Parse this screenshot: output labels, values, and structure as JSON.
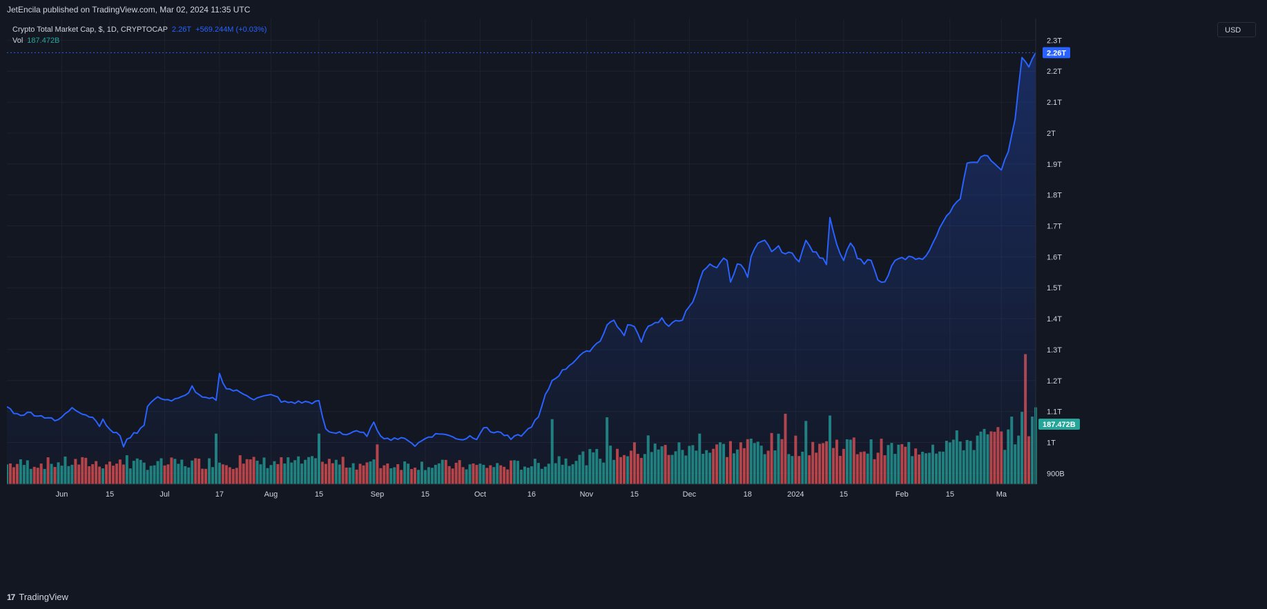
{
  "header": {
    "published_text": "JetEncila published on TradingView.com, Mar 02, 2024 11:35 UTC"
  },
  "legend": {
    "symbol": "Crypto Total Market Cap, $, 1D, CRYPTOCAP",
    "last_price": "2.26T",
    "change": "+569.244M (+0.03%)",
    "vol_label": "Vol",
    "vol_value": "187.472B"
  },
  "currency_button": "USD",
  "footer": {
    "brand": "TradingView",
    "logo_glyph": "17"
  },
  "colors": {
    "background": "#131722",
    "line": "#2962ff",
    "volume_up": "#26a69a",
    "volume_down": "#ef5350",
    "grid": "#1e222d",
    "axis_text": "#d1d4dc"
  },
  "chart_data": {
    "type": "area",
    "title": "Crypto Total Market Cap, $, 1D, CRYPTOCAP",
    "xlabel": "",
    "ylabel": "",
    "grid": true,
    "y_axis_position": "right",
    "ylim": [
      0.865,
      2.37
    ],
    "y_ticks": [
      {
        "value": 0.9,
        "label": "900B"
      },
      {
        "value": 1.0,
        "label": "1T"
      },
      {
        "value": 1.1,
        "label": "1.1T"
      },
      {
        "value": 1.2,
        "label": "1.2T"
      },
      {
        "value": 1.3,
        "label": "1.3T"
      },
      {
        "value": 1.4,
        "label": "1.4T"
      },
      {
        "value": 1.5,
        "label": "1.5T"
      },
      {
        "value": 1.6,
        "label": "1.6T"
      },
      {
        "value": 1.7,
        "label": "1.7T"
      },
      {
        "value": 1.8,
        "label": "1.8T"
      },
      {
        "value": 1.9,
        "label": "1.9T"
      },
      {
        "value": 2.0,
        "label": "2T"
      },
      {
        "value": 2.1,
        "label": "2.1T"
      },
      {
        "value": 2.2,
        "label": "2.2T"
      },
      {
        "value": 2.3,
        "label": "2.3T"
      }
    ],
    "x_ticks": [
      {
        "day": 16,
        "label": "Jun"
      },
      {
        "day": 30,
        "label": "15"
      },
      {
        "day": 46,
        "label": "Jul"
      },
      {
        "day": 62,
        "label": "17"
      },
      {
        "day": 77,
        "label": "Aug"
      },
      {
        "day": 91,
        "label": "15"
      },
      {
        "day": 108,
        "label": "Sep"
      },
      {
        "day": 122,
        "label": "15"
      },
      {
        "day": 138,
        "label": "Oct"
      },
      {
        "day": 153,
        "label": "16"
      },
      {
        "day": 169,
        "label": "Nov"
      },
      {
        "day": 183,
        "label": "15"
      },
      {
        "day": 199,
        "label": "Dec"
      },
      {
        "day": 216,
        "label": "18"
      },
      {
        "day": 230,
        "label": "2024"
      },
      {
        "day": 244,
        "label": "15"
      },
      {
        "day": 261,
        "label": "Feb"
      },
      {
        "day": 275,
        "label": "15"
      },
      {
        "day": 290,
        "label": "Ma"
      }
    ],
    "last_price_marker": {
      "value": 2.26,
      "label": "2.26T"
    },
    "last_volume_marker": {
      "label": "187.472B"
    },
    "price_keypoints": [
      [
        0,
        1.115
      ],
      [
        3,
        1.09
      ],
      [
        7,
        1.095
      ],
      [
        10,
        1.085
      ],
      [
        13,
        1.08
      ],
      [
        14,
        1.065
      ],
      [
        17,
        1.09
      ],
      [
        19,
        1.115
      ],
      [
        22,
        1.095
      ],
      [
        24,
        1.085
      ],
      [
        26,
        1.075
      ],
      [
        27,
        1.055
      ],
      [
        28,
        1.07
      ],
      [
        31,
        1.03
      ],
      [
        33,
        1.025
      ],
      [
        34,
        0.99
      ],
      [
        36,
        1.02
      ],
      [
        38,
        1.035
      ],
      [
        40,
        1.06
      ],
      [
        41,
        1.115
      ],
      [
        43,
        1.14
      ],
      [
        45,
        1.145
      ],
      [
        48,
        1.135
      ],
      [
        50,
        1.14
      ],
      [
        52,
        1.15
      ],
      [
        54,
        1.18
      ],
      [
        56,
        1.15
      ],
      [
        58,
        1.14
      ],
      [
        61,
        1.14
      ],
      [
        62,
        1.22
      ],
      [
        64,
        1.175
      ],
      [
        67,
        1.165
      ],
      [
        70,
        1.155
      ],
      [
        72,
        1.14
      ],
      [
        74,
        1.145
      ],
      [
        78,
        1.155
      ],
      [
        80,
        1.13
      ],
      [
        83,
        1.13
      ],
      [
        86,
        1.13
      ],
      [
        89,
        1.13
      ],
      [
        91,
        1.13
      ],
      [
        93,
        1.04
      ],
      [
        95,
        1.03
      ],
      [
        97,
        1.035
      ],
      [
        99,
        1.025
      ],
      [
        101,
        1.035
      ],
      [
        103,
        1.03
      ],
      [
        105,
        1.025
      ],
      [
        107,
        1.06
      ],
      [
        109,
        1.025
      ],
      [
        111,
        1.01
      ],
      [
        113,
        1.015
      ],
      [
        115,
        1.01
      ],
      [
        117,
        1.01
      ],
      [
        119,
        0.99
      ],
      [
        121,
        1.005
      ],
      [
        123,
        1.02
      ],
      [
        125,
        1.025
      ],
      [
        127,
        1.03
      ],
      [
        129,
        1.02
      ],
      [
        131,
        1.015
      ],
      [
        133,
        1.01
      ],
      [
        135,
        1.02
      ],
      [
        137,
        1.015
      ],
      [
        139,
        1.05
      ],
      [
        141,
        1.035
      ],
      [
        143,
        1.035
      ],
      [
        145,
        1.025
      ],
      [
        147,
        1.01
      ],
      [
        149,
        1.02
      ],
      [
        151,
        1.03
      ],
      [
        153,
        1.055
      ],
      [
        155,
        1.08
      ],
      [
        157,
        1.15
      ],
      [
        159,
        1.2
      ],
      [
        161,
        1.22
      ],
      [
        163,
        1.24
      ],
      [
        165,
        1.26
      ],
      [
        167,
        1.28
      ],
      [
        169,
        1.29
      ],
      [
        171,
        1.31
      ],
      [
        173,
        1.33
      ],
      [
        175,
        1.38
      ],
      [
        177,
        1.395
      ],
      [
        179,
        1.36
      ],
      [
        180,
        1.34
      ],
      [
        181,
        1.385
      ],
      [
        183,
        1.37
      ],
      [
        185,
        1.33
      ],
      [
        187,
        1.38
      ],
      [
        189,
        1.385
      ],
      [
        191,
        1.4
      ],
      [
        193,
        1.37
      ],
      [
        195,
        1.395
      ],
      [
        197,
        1.4
      ],
      [
        198,
        1.42
      ],
      [
        200,
        1.45
      ],
      [
        202,
        1.52
      ],
      [
        203,
        1.555
      ],
      [
        205,
        1.58
      ],
      [
        207,
        1.56
      ],
      [
        209,
        1.6
      ],
      [
        210,
        1.585
      ],
      [
        211,
        1.52
      ],
      [
        213,
        1.58
      ],
      [
        215,
        1.56
      ],
      [
        216,
        1.53
      ],
      [
        217,
        1.6
      ],
      [
        219,
        1.64
      ],
      [
        221,
        1.65
      ],
      [
        223,
        1.62
      ],
      [
        225,
        1.63
      ],
      [
        227,
        1.61
      ],
      [
        229,
        1.61
      ],
      [
        231,
        1.59
      ],
      [
        233,
        1.65
      ],
      [
        235,
        1.62
      ],
      [
        237,
        1.6
      ],
      [
        239,
        1.58
      ],
      [
        240,
        1.73
      ],
      [
        242,
        1.64
      ],
      [
        244,
        1.59
      ],
      [
        246,
        1.65
      ],
      [
        248,
        1.6
      ],
      [
        250,
        1.58
      ],
      [
        252,
        1.59
      ],
      [
        254,
        1.52
      ],
      [
        256,
        1.515
      ],
      [
        258,
        1.57
      ],
      [
        260,
        1.595
      ],
      [
        262,
        1.59
      ],
      [
        264,
        1.605
      ],
      [
        266,
        1.59
      ],
      [
        268,
        1.6
      ],
      [
        270,
        1.65
      ],
      [
        272,
        1.69
      ],
      [
        274,
        1.73
      ],
      [
        276,
        1.76
      ],
      [
        278,
        1.79
      ],
      [
        280,
        1.9
      ],
      [
        282,
        1.9
      ],
      [
        284,
        1.92
      ],
      [
        286,
        1.93
      ],
      [
        288,
        1.9
      ],
      [
        290,
        1.88
      ],
      [
        292,
        1.94
      ],
      [
        294,
        2.05
      ],
      [
        296,
        2.25
      ],
      [
        298,
        2.21
      ],
      [
        300,
        2.26
      ]
    ],
    "volume_ylim": [
      0,
      420
    ],
    "volume_keypoints": [
      [
        0,
        55
      ],
      [
        20,
        60
      ],
      [
        40,
        55
      ],
      [
        60,
        60
      ],
      [
        80,
        60
      ],
      [
        95,
        60
      ],
      [
        105,
        55
      ],
      [
        120,
        55
      ],
      [
        140,
        50
      ],
      [
        155,
        55
      ],
      [
        160,
        70
      ],
      [
        170,
        75
      ],
      [
        180,
        90
      ],
      [
        190,
        95
      ],
      [
        200,
        95
      ],
      [
        210,
        100
      ],
      [
        220,
        110
      ],
      [
        230,
        110
      ],
      [
        240,
        115
      ],
      [
        250,
        100
      ],
      [
        260,
        95
      ],
      [
        270,
        110
      ],
      [
        280,
        120
      ],
      [
        290,
        130
      ],
      [
        300,
        180
      ]
    ],
    "volume_highlights": [
      [
        35,
        80
      ],
      [
        61,
        140
      ],
      [
        68,
        80
      ],
      [
        91,
        140
      ],
      [
        108,
        110
      ],
      [
        159,
        180
      ],
      [
        175,
        185
      ],
      [
        187,
        135
      ],
      [
        202,
        140
      ],
      [
        207,
        110
      ],
      [
        227,
        195
      ],
      [
        233,
        175
      ],
      [
        240,
        190
      ],
      [
        297,
        360
      ],
      [
        299,
        187
      ]
    ]
  }
}
